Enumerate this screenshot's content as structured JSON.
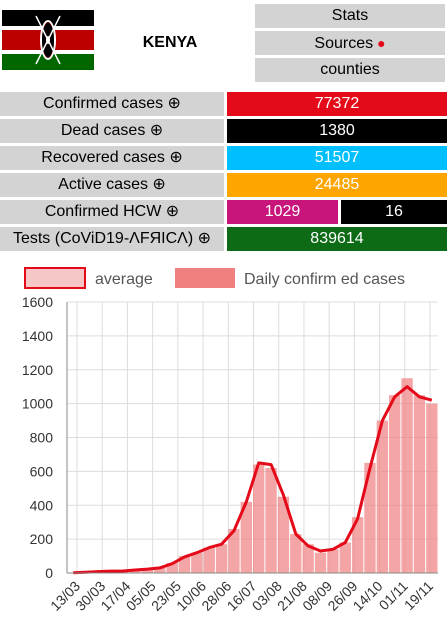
{
  "country": "KENYA",
  "nav": {
    "stats": "Stats",
    "sources": "Sources",
    "counties": "counties"
  },
  "stats": {
    "confirmed": {
      "label": "Confirmed cases ⊕",
      "value": "77372"
    },
    "dead": {
      "label": "Dead cases ⊕",
      "value": "1380"
    },
    "recovered": {
      "label": "Recovered cases ⊕",
      "value": "51507"
    },
    "active": {
      "label": "Active cases ⊕",
      "value": "24485"
    },
    "hcw": {
      "label": "Confirmed HCW ⊕",
      "value1": "1029",
      "value2": "16"
    },
    "tests": {
      "label": "Tests (CoViD19-ɅFЯICɅ) ⊕",
      "value": "839614"
    }
  },
  "colors": {
    "confirmed": "#e40a19",
    "dead": "#000000",
    "recovered": "#00bfff",
    "active": "#ffa500",
    "hcw": "#c8157c",
    "tests": "#0c6b14",
    "bar": "#f08080",
    "line": "#e40a19"
  },
  "chart_data": {
    "type": "bar",
    "title": "",
    "xlabel": "",
    "ylabel": "",
    "ylim": [
      0,
      1600
    ],
    "grid": true,
    "legend_position": "top",
    "y_ticks": [
      "0",
      "200",
      "400",
      "600",
      "800",
      "1000",
      "1200",
      "1400",
      "1600"
    ],
    "x_ticks": [
      "13/03",
      "30/03",
      "17/04",
      "05/05",
      "23/05",
      "10/06",
      "28/06",
      "16/07",
      "03/08",
      "21/08",
      "08/09",
      "26/09",
      "14/10",
      "01/11",
      "19/11"
    ],
    "series": [
      {
        "name": "Daily confirm ed cases",
        "kind": "bar",
        "x": [
          "13/03",
          "21/03",
          "30/03",
          "08/04",
          "17/04",
          "26/04",
          "05/05",
          "14/05",
          "23/05",
          "01/06",
          "10/06",
          "19/06",
          "28/06",
          "07/07",
          "16/07",
          "25/07",
          "03/08",
          "12/08",
          "21/08",
          "30/08",
          "08/09",
          "17/09",
          "26/09",
          "05/10",
          "14/10",
          "23/10",
          "01/11",
          "10/11",
          "19/11",
          "24/11"
        ],
        "values": [
          1,
          4,
          8,
          12,
          10,
          18,
          25,
          30,
          60,
          100,
          120,
          150,
          170,
          260,
          420,
          640,
          620,
          450,
          230,
          170,
          120,
          140,
          180,
          330,
          650,
          900,
          1050,
          1150,
          1050,
          1000
        ]
      },
      {
        "name": "average",
        "kind": "line",
        "x": [
          "13/03",
          "21/03",
          "30/03",
          "08/04",
          "17/04",
          "26/04",
          "05/05",
          "14/05",
          "23/05",
          "01/06",
          "10/06",
          "19/06",
          "28/06",
          "07/07",
          "16/07",
          "25/07",
          "03/08",
          "12/08",
          "21/08",
          "30/08",
          "08/09",
          "17/09",
          "26/09",
          "05/10",
          "14/10",
          "23/10",
          "01/11",
          "10/11",
          "19/11",
          "24/11"
        ],
        "values": [
          1,
          5,
          8,
          11,
          12,
          18,
          23,
          30,
          55,
          95,
          120,
          150,
          170,
          250,
          420,
          650,
          640,
          460,
          230,
          160,
          130,
          140,
          180,
          320,
          620,
          900,
          1040,
          1100,
          1040,
          1020
        ]
      }
    ]
  }
}
